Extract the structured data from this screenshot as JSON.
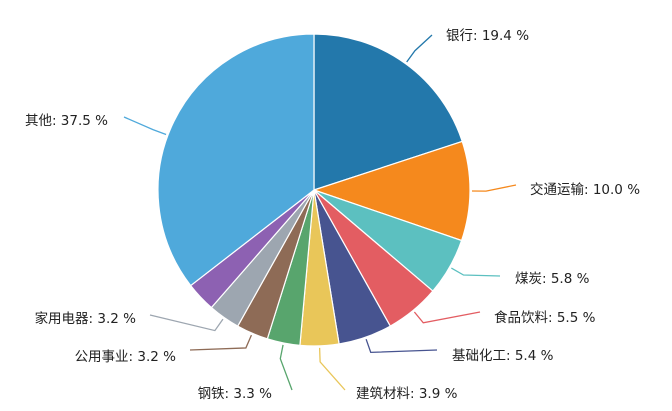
{
  "chart_data": {
    "type": "pie",
    "title": "",
    "legend": "none",
    "slices": [
      {
        "label": "银行",
        "value": 19.4,
        "display": "银行: 19.4 %",
        "color": "#1f77aa"
      },
      {
        "label": "交通运输",
        "value": 10.0,
        "display": "交通运输: 10.0 %",
        "color": "#f5891d"
      },
      {
        "label": "煤炭",
        "value": 5.8,
        "display": "煤炭: 5.8 %",
        "color": "#5bbfbf"
      },
      {
        "label": "食品饮料",
        "value": 5.5,
        "display": "食品饮料: 5.5 %",
        "color": "#e35d62"
      },
      {
        "label": "基础化工",
        "value": 5.4,
        "display": "基础化工: 5.4 %",
        "color": "#465489"
      },
      {
        "label": "建筑材料",
        "value": 3.9,
        "display": "建筑材料: 3.9 %",
        "color": "#e9c35a"
      },
      {
        "label": "钢铁",
        "value": 3.3,
        "display": "钢铁: 3.3 %",
        "color": "#56a46c"
      },
      {
        "label": "公用事业",
        "value": 3.2,
        "display": "公用事业: 3.2 %",
        "color": "#8f6a55"
      },
      {
        "label": "家用电器",
        "value": 3.2,
        "display": "家用电器: 3.2 %",
        "color": "#9fa7b1"
      },
      {
        "label": "其他",
        "value": 37.5,
        "display": "其他: 37.5 %",
        "color": "#8d61b2",
        "color_main": "#4fa9db"
      }
    ]
  }
}
